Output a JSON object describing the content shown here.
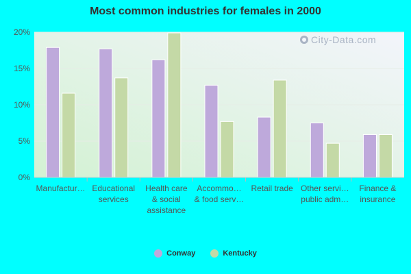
{
  "chart_data": {
    "type": "bar",
    "title": "Most common industries for females in 2000",
    "categories": [
      [
        "Manufactur…"
      ],
      [
        "Educational",
        "services"
      ],
      [
        "Health care",
        "& social",
        "assistance"
      ],
      [
        "Accommo…",
        "& food serv…"
      ],
      [
        "Retail trade"
      ],
      [
        "Other servi…",
        "public adm…"
      ],
      [
        "Finance &",
        "insurance"
      ]
    ],
    "series": [
      {
        "name": "Conway",
        "color": "#bea9db",
        "values": [
          17.9,
          17.7,
          16.2,
          12.7,
          8.3,
          7.5,
          5.9
        ]
      },
      {
        "name": "Kentucky",
        "color": "#c4d9a6",
        "values": [
          11.6,
          13.7,
          19.9,
          7.7,
          13.4,
          4.7,
          5.9
        ]
      }
    ],
    "y_ticks": [
      "0%",
      "5%",
      "10%",
      "15%",
      "20%"
    ],
    "ylim": [
      0,
      20
    ],
    "grid": true,
    "legend_position": "bottom"
  },
  "watermark": {
    "text": "City-Data.com",
    "icon": "search-icon"
  },
  "colors": {
    "background": "#00ffff",
    "plot_bg_top": "#f3f4fb",
    "plot_bg_bottom": "#d6f3d6"
  }
}
